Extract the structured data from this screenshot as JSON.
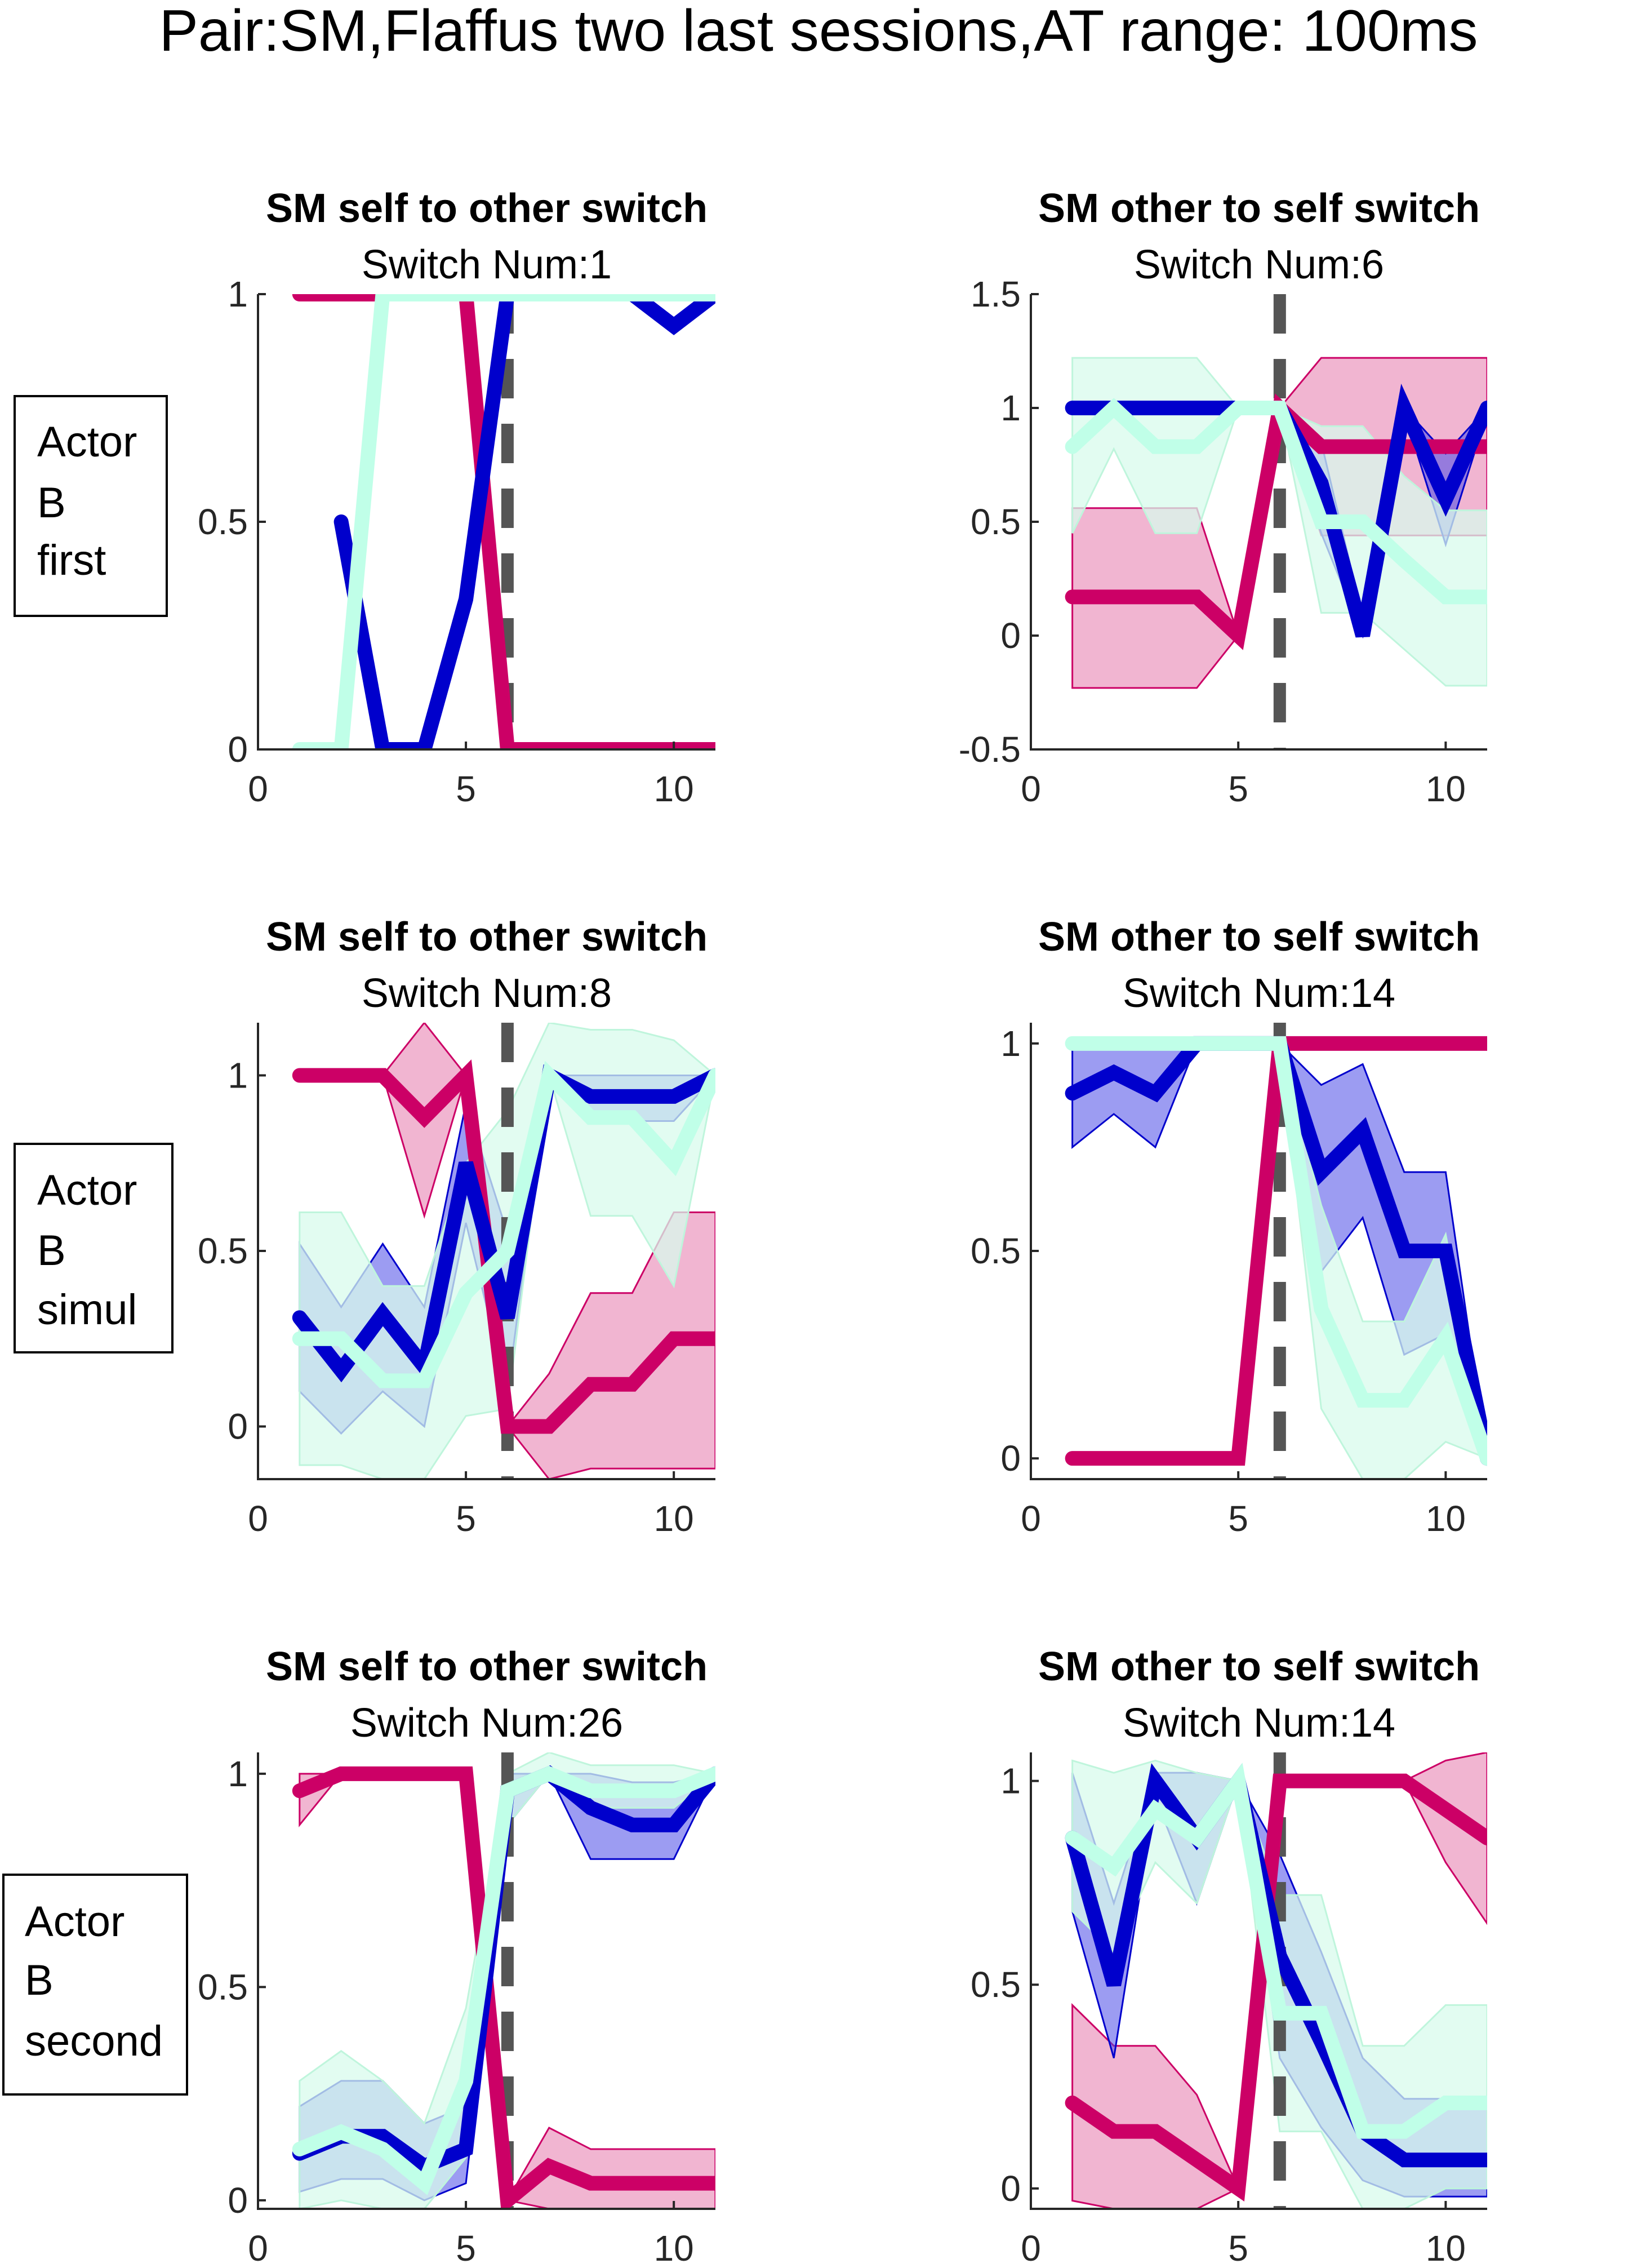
{
  "figure": {
    "suptitle": "Pair:SM,Flaffus two last sessions,AT range: 100ms",
    "row_labels": [
      [
        "Actor",
        "B",
        "first"
      ],
      [
        "Actor",
        "B",
        "simul"
      ],
      [
        "Actor",
        "B",
        "second"
      ]
    ]
  },
  "colors": {
    "magenta": "#cc0066",
    "magenta_fill": "#e05a9a",
    "blue": "#0000cc",
    "blue_fill": "#4a4ae8",
    "mint": "#c0ffe8",
    "mint_edge": "#bff5dc",
    "mint_fill": "#d8fbec",
    "dashed": "#555555"
  },
  "chart_data": [
    {
      "type": "line",
      "title": "SM self to other switch",
      "subtitle": "Switch Num:1",
      "xlim": [
        0,
        11
      ],
      "ylim": [
        0,
        1
      ],
      "xticks": [
        0,
        5,
        10
      ],
      "yticks": [
        0,
        0.5,
        1
      ],
      "xtick_labels": [
        "0",
        "5",
        "10"
      ],
      "ytick_labels": [
        "0",
        "0.5",
        "1"
      ],
      "switch_x": 6,
      "series": [
        {
          "color_key": "magenta",
          "x": [
            1,
            2,
            3,
            4,
            5,
            6,
            7,
            8,
            9,
            10,
            11
          ],
          "values": [
            1,
            1,
            1,
            1,
            1,
            0,
            0,
            0,
            0,
            0,
            0
          ]
        },
        {
          "color_key": "blue",
          "x": [
            2,
            3,
            4,
            5,
            6,
            7,
            8,
            9,
            10,
            11
          ],
          "values": [
            0.5,
            0,
            0,
            0.33,
            1,
            1,
            1,
            1,
            0.93,
            1
          ]
        },
        {
          "color_key": "mint",
          "x": [
            1,
            2,
            3,
            4,
            5,
            6,
            7,
            8,
            9,
            10,
            11
          ],
          "values": [
            0,
            0,
            1,
            1,
            1,
            1,
            1,
            1,
            1,
            1,
            1
          ]
        }
      ]
    },
    {
      "type": "line",
      "title": "SM other to self switch",
      "subtitle": "Switch Num:6",
      "xlim": [
        0,
        11
      ],
      "ylim": [
        -0.5,
        1.5
      ],
      "xticks": [
        0,
        5,
        10
      ],
      "yticks": [
        -0.5,
        0,
        0.5,
        1,
        1.5
      ],
      "xtick_labels": [
        "0",
        "5",
        "10"
      ],
      "ytick_labels": [
        "-0.5",
        "0",
        "0.5",
        "1",
        "1.5"
      ],
      "switch_x": 6,
      "series": [
        {
          "color_key": "magenta",
          "x": [
            1,
            2,
            3,
            4,
            5,
            6,
            7,
            8,
            9,
            10,
            11
          ],
          "values": [
            0.17,
            0.17,
            0.17,
            0.17,
            0,
            1,
            0.83,
            0.83,
            0.83,
            0.83,
            0.83
          ],
          "lower": [
            -0.23,
            -0.23,
            -0.23,
            -0.23,
            0,
            1,
            0.44,
            0.44,
            0.44,
            0.44,
            0.44
          ],
          "upper": [
            0.56,
            0.56,
            0.56,
            0.56,
            0,
            1,
            1.22,
            1.22,
            1.22,
            1.22,
            1.22
          ]
        },
        {
          "color_key": "blue",
          "x": [
            1,
            2,
            3,
            4,
            5,
            6,
            7,
            8,
            9,
            10,
            11
          ],
          "values": [
            1,
            1,
            1,
            1,
            1,
            1,
            0.67,
            0,
            1,
            0.6,
            1
          ],
          "lower": [
            1,
            1,
            1,
            1,
            1,
            1,
            0.45,
            0,
            0.98,
            0.4,
            0.98
          ],
          "upper": [
            1,
            1,
            1,
            1,
            1,
            1,
            0.85,
            0.08,
            1,
            0.8,
            1
          ]
        },
        {
          "color_key": "mint",
          "x": [
            1,
            2,
            3,
            4,
            5,
            6,
            7,
            8,
            9,
            10,
            11
          ],
          "values": [
            0.83,
            1,
            0.83,
            0.83,
            1,
            1,
            0.5,
            0.5,
            0.33,
            0.17,
            0.17
          ],
          "lower": [
            0.45,
            0.82,
            0.45,
            0.45,
            1,
            1,
            0.1,
            0.1,
            -0.06,
            -0.22,
            -0.22
          ],
          "upper": [
            1.22,
            1.22,
            1.22,
            1.22,
            1,
            1,
            0.92,
            0.92,
            0.7,
            0.55,
            0.55
          ]
        }
      ]
    },
    {
      "type": "line",
      "title": "SM self to other switch",
      "subtitle": "Switch Num:8",
      "xlim": [
        0,
        11
      ],
      "ylim": [
        -0.15,
        1.15
      ],
      "xticks": [
        0,
        5,
        10
      ],
      "yticks": [
        0,
        0.5,
        1
      ],
      "xtick_labels": [
        "0",
        "5",
        "10"
      ],
      "ytick_labels": [
        "0",
        "0.5",
        "1"
      ],
      "switch_x": 6,
      "series": [
        {
          "color_key": "magenta",
          "x": [
            1,
            2,
            3,
            4,
            5,
            6,
            7,
            8,
            9,
            10,
            11
          ],
          "values": [
            1,
            1,
            1,
            0.88,
            1,
            0,
            0,
            0.12,
            0.12,
            0.25,
            0.25
          ],
          "lower": [
            1,
            1,
            1,
            0.6,
            1,
            0,
            -0.15,
            -0.12,
            -0.12,
            -0.12,
            -0.12
          ],
          "upper": [
            1,
            1,
            1,
            1.15,
            1,
            0,
            0.15,
            0.38,
            0.38,
            0.61,
            0.61
          ]
        },
        {
          "color_key": "blue",
          "x": [
            1,
            2,
            3,
            4,
            5,
            6,
            7,
            8,
            9,
            10,
            11
          ],
          "values": [
            0.31,
            0.16,
            0.32,
            0.17,
            0.75,
            0.31,
            1,
            0.94,
            0.94,
            0.94,
            1
          ],
          "lower": [
            0.1,
            -0.02,
            0.1,
            0,
            0.58,
            0.1,
            1,
            0.87,
            0.87,
            0.87,
            1
          ],
          "upper": [
            0.52,
            0.34,
            0.52,
            0.34,
            0.92,
            0.55,
            1,
            1,
            1,
            1,
            1
          ]
        },
        {
          "color_key": "mint",
          "x": [
            1,
            2,
            3,
            4,
            5,
            6,
            7,
            8,
            9,
            10,
            11
          ],
          "values": [
            0.25,
            0.25,
            0.13,
            0.13,
            0.38,
            0.5,
            1,
            0.88,
            0.88,
            0.75,
            1
          ],
          "lower": [
            -0.11,
            -0.11,
            -0.15,
            -0.15,
            0.03,
            0.05,
            1,
            0.6,
            0.6,
            0.4,
            1
          ],
          "upper": [
            0.61,
            0.61,
            0.4,
            0.4,
            0.75,
            0.9,
            1.15,
            1.13,
            1.13,
            1.1,
            1
          ]
        }
      ]
    },
    {
      "type": "line",
      "title": "SM other to self switch",
      "subtitle": "Switch Num:14",
      "xlim": [
        0,
        11
      ],
      "ylim": [
        -0.05,
        1.05
      ],
      "xticks": [
        0,
        5,
        10
      ],
      "yticks": [
        0,
        0.5,
        1
      ],
      "xtick_labels": [
        "0",
        "5",
        "10"
      ],
      "ytick_labels": [
        "0",
        "0.5",
        "1"
      ],
      "switch_x": 6,
      "series": [
        {
          "color_key": "magenta",
          "x": [
            1,
            2,
            3,
            4,
            5,
            6,
            7,
            8,
            9,
            10,
            11
          ],
          "values": [
            0,
            0,
            0,
            0,
            0,
            1,
            1,
            1,
            1,
            1,
            1
          ]
        },
        {
          "color_key": "blue",
          "x": [
            1,
            2,
            3,
            4,
            5,
            6,
            7,
            8,
            9,
            10,
            11
          ],
          "values": [
            0.88,
            0.93,
            0.88,
            1,
            1,
            1,
            0.69,
            0.79,
            0.5,
            0.5,
            0
          ],
          "lower": [
            0.75,
            0.83,
            0.75,
            1,
            1,
            1,
            0.45,
            0.58,
            0.25,
            0.3,
            0
          ],
          "upper": [
            1,
            1,
            1,
            1,
            1,
            1,
            0.9,
            0.95,
            0.69,
            0.69,
            0
          ]
        },
        {
          "color_key": "mint",
          "x": [
            1,
            2,
            3,
            4,
            5,
            6,
            7,
            8,
            9,
            10,
            11
          ],
          "values": [
            1,
            1,
            1,
            1,
            1,
            1,
            0.36,
            0.14,
            0.14,
            0.29,
            0
          ],
          "lower": [
            1,
            1,
            1,
            1,
            1,
            1,
            0.12,
            -0.05,
            -0.05,
            0.04,
            0
          ],
          "upper": [
            1,
            1,
            1,
            1,
            1,
            1,
            0.61,
            0.33,
            0.33,
            0.54,
            0
          ]
        }
      ]
    },
    {
      "type": "line",
      "title": "SM self to other switch",
      "subtitle": "Switch Num:26",
      "xlim": [
        0,
        11
      ],
      "ylim": [
        -0.02,
        1.05
      ],
      "xticks": [
        0,
        5,
        10
      ],
      "yticks": [
        0,
        0.5,
        1
      ],
      "xtick_labels": [
        "0",
        "5",
        "10"
      ],
      "ytick_labels": [
        "0",
        "0.5",
        "1"
      ],
      "switch_x": 6,
      "series": [
        {
          "color_key": "magenta",
          "x": [
            1,
            2,
            3,
            4,
            5,
            6,
            7,
            8,
            9,
            10,
            11
          ],
          "values": [
            0.96,
            1,
            1,
            1,
            1,
            0,
            0.08,
            0.04,
            0.04,
            0.04,
            0.04
          ],
          "lower": [
            0.88,
            1,
            1,
            1,
            1,
            0,
            -0.02,
            -0.02,
            -0.02,
            -0.02,
            -0.02
          ],
          "upper": [
            1,
            1,
            1,
            1,
            1,
            0,
            0.17,
            0.12,
            0.12,
            0.12,
            0.12
          ]
        },
        {
          "color_key": "blue",
          "x": [
            1,
            2,
            3,
            4,
            5,
            6,
            7,
            8,
            9,
            10,
            11
          ],
          "values": [
            0.11,
            0.15,
            0.15,
            0.08,
            0.12,
            0.96,
            1,
            0.92,
            0.88,
            0.88,
            1
          ],
          "lower": [
            0.02,
            0.05,
            0.05,
            0,
            0.04,
            0.88,
            1,
            0.8,
            0.8,
            0.8,
            1
          ],
          "upper": [
            0.22,
            0.28,
            0.28,
            0.18,
            0.22,
            1,
            1,
            1,
            0.98,
            0.98,
            1
          ]
        },
        {
          "color_key": "mint",
          "x": [
            1,
            2,
            3,
            4,
            5,
            6,
            7,
            8,
            9,
            10,
            11
          ],
          "values": [
            0.12,
            0.16,
            0.12,
            0.04,
            0.28,
            0.96,
            1,
            0.96,
            0.96,
            0.96,
            1
          ],
          "lower": [
            -0.02,
            0,
            -0.02,
            -0.02,
            0.1,
            0.88,
            1,
            0.92,
            0.92,
            0.92,
            1
          ],
          "upper": [
            0.28,
            0.35,
            0.28,
            0.18,
            0.45,
            1,
            1.05,
            1.02,
            1.02,
            1.02,
            1
          ]
        }
      ]
    },
    {
      "type": "line",
      "title": "SM other to self switch",
      "subtitle": "Switch Num:14",
      "xlim": [
        0,
        11
      ],
      "ylim": [
        -0.05,
        1.07
      ],
      "xticks": [
        0,
        5,
        10
      ],
      "yticks": [
        0,
        0.5,
        1
      ],
      "xtick_labels": [
        "0",
        "5",
        "10"
      ],
      "ytick_labels": [
        "0",
        "0.5",
        "1"
      ],
      "switch_x": 6,
      "series": [
        {
          "color_key": "magenta",
          "x": [
            1,
            2,
            3,
            4,
            5,
            6,
            7,
            8,
            9,
            10,
            11
          ],
          "values": [
            0.21,
            0.14,
            0.14,
            0.07,
            0,
            1,
            1,
            1,
            1,
            0.93,
            0.86
          ],
          "lower": [
            -0.03,
            -0.05,
            -0.05,
            -0.05,
            0,
            1,
            1,
            1,
            1,
            0.8,
            0.65
          ],
          "upper": [
            0.45,
            0.35,
            0.35,
            0.23,
            0,
            1,
            1,
            1,
            1,
            1.05,
            1.07
          ]
        },
        {
          "color_key": "blue",
          "x": [
            1,
            2,
            3,
            4,
            5,
            6,
            7,
            8,
            9,
            10,
            11
          ],
          "values": [
            0.86,
            0.5,
            1,
            0.86,
            1,
            0.57,
            0.36,
            0.14,
            0.07,
            0.07,
            0.07
          ],
          "lower": [
            0.68,
            0.32,
            0.96,
            0.7,
            1,
            0.32,
            0.15,
            0.02,
            -0.02,
            -0.02,
            -0.02
          ],
          "upper": [
            1.02,
            0.7,
            1.02,
            1.02,
            1,
            0.82,
            0.58,
            0.32,
            0.22,
            0.22,
            0.2
          ]
        },
        {
          "color_key": "mint",
          "x": [
            1,
            2,
            3,
            4,
            5,
            6,
            7,
            8,
            9,
            10,
            11
          ],
          "values": [
            0.86,
            0.79,
            0.93,
            0.86,
            1,
            0.43,
            0.43,
            0.14,
            0.14,
            0.21,
            0.21
          ],
          "lower": [
            0.68,
            0.58,
            0.8,
            0.7,
            1,
            0.14,
            0.14,
            -0.05,
            -0.05,
            0,
            0
          ],
          "upper": [
            1.05,
            1.02,
            1.05,
            1.02,
            1,
            0.72,
            0.72,
            0.35,
            0.35,
            0.45,
            0.45
          ]
        }
      ]
    }
  ]
}
